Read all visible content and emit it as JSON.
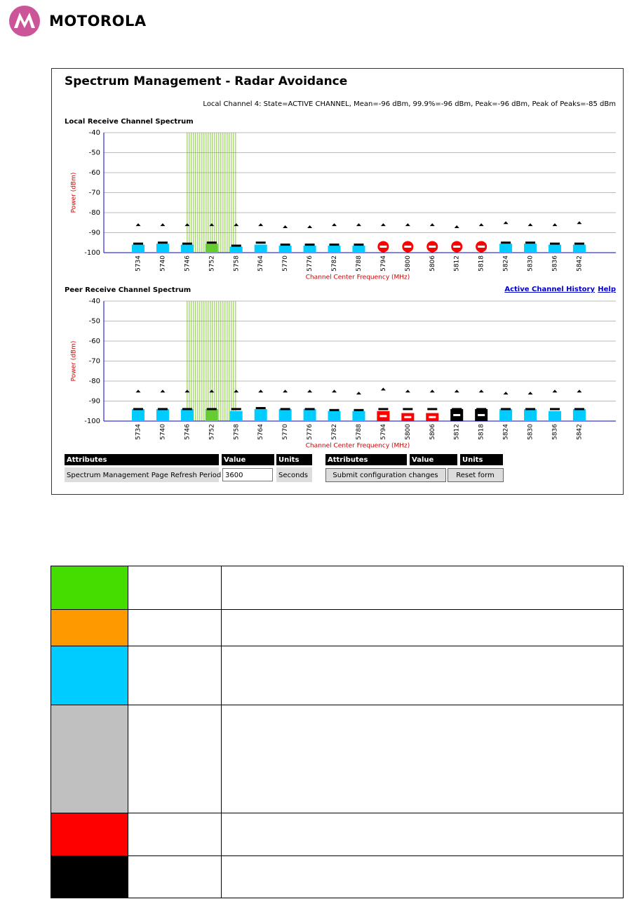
{
  "header": {
    "brand": "MOTOROLA"
  },
  "panel": {
    "title": "Spectrum Management - Radar Avoidance",
    "status": "Local Channel 4: State=ACTIVE CHANNEL, Mean=-96 dBm, 99.9%=-96 dBm, Peak=-96 dBm, Peak of Peaks=-85 dBm"
  },
  "links": [
    "Active Channel History",
    "Help"
  ],
  "chart_data": [
    {
      "type": "bar",
      "title": "Local Receive Channel Spectrum",
      "ylabel": "Power (dBm)",
      "xlabel": "Channel Center Frequency (MHz)",
      "categories": [
        5734,
        5740,
        5746,
        5752,
        5758,
        5764,
        5770,
        5776,
        5782,
        5788,
        5794,
        5800,
        5806,
        5812,
        5818,
        5824,
        5830,
        5836,
        5842
      ],
      "ylim": [
        -100,
        -40
      ],
      "yticks": [
        -40,
        -50,
        -60,
        -70,
        -80,
        -90,
        -100
      ],
      "grid": true,
      "radar_marker": "circle",
      "bar_values": [
        -96,
        -95.5,
        -96,
        -95.5,
        -97,
        -96,
        -96.5,
        -96.5,
        -96.5,
        -96.5,
        -97,
        -97,
        -97,
        -97,
        -97,
        -95.5,
        -95.5,
        -96,
        -96
      ],
      "bar_colors": [
        "#00ccff",
        "#00ccff",
        "#00ccff",
        "#66cc33",
        "#00ccff",
        "#00ccff",
        "#00ccff",
        "#00ccff",
        "#00ccff",
        "#00ccff",
        "#ff0000",
        "#ff0000",
        "#ff0000",
        "#ff0000",
        "#ff0000",
        "#00ccff",
        "#00ccff",
        "#00ccff",
        "#00ccff"
      ],
      "line_values": [
        -95.5,
        -95,
        -95.5,
        -95,
        -96.5,
        -95,
        -96,
        -96,
        -96,
        -96,
        null,
        null,
        null,
        null,
        null,
        -95,
        -95,
        -95.5,
        -95.5
      ],
      "peak_values": [
        -86,
        -86,
        -86,
        -86,
        -86,
        -86,
        -87,
        -87,
        -86,
        -86,
        -86,
        -86,
        -86,
        -87,
        -86,
        -85,
        -86,
        -86,
        -85
      ],
      "highlight": [
        5746,
        5758
      ],
      "highlight_color": "#66bb00"
    },
    {
      "type": "bar",
      "title": "Peer Receive Channel Spectrum",
      "ylabel": "Power (dBm)",
      "xlabel": "Channel Center Frequency (MHz)",
      "categories": [
        5734,
        5740,
        5746,
        5752,
        5758,
        5764,
        5770,
        5776,
        5782,
        5788,
        5794,
        5800,
        5806,
        5812,
        5818,
        5824,
        5830,
        5836,
        5842
      ],
      "ylim": [
        -100,
        -40
      ],
      "yticks": [
        -40,
        -50,
        -60,
        -70,
        -80,
        -90,
        -100
      ],
      "grid": true,
      "radar_marker": "bar",
      "bar_values": [
        -94,
        -94,
        -94,
        -94,
        -95,
        -94,
        -94,
        -94,
        -95,
        -95,
        -95,
        -96,
        -96,
        -94,
        -94,
        -94,
        -94,
        -95,
        -94
      ],
      "bar_colors": [
        "#00ccff",
        "#00ccff",
        "#00ccff",
        "#66cc33",
        "#00ccff",
        "#00ccff",
        "#00ccff",
        "#00ccff",
        "#00ccff",
        "#00ccff",
        "#ff0000",
        "#ff0000",
        "#ff0000",
        "#000000",
        "#000000",
        "#00ccff",
        "#00ccff",
        "#00ccff",
        "#00ccff"
      ],
      "line_values": [
        -94,
        -94,
        -94,
        -94,
        -94,
        -93.5,
        -94,
        -94,
        -94.5,
        -94.5,
        -94,
        -94,
        -94,
        -94,
        -94,
        -94,
        -94,
        -94,
        -94
      ],
      "peak_values": [
        -85,
        -85,
        -85,
        -85,
        -85,
        -85,
        -85,
        -85,
        -85,
        -86,
        -84,
        -85,
        -85,
        -85,
        -85,
        -86,
        -86,
        -85,
        -85
      ],
      "highlight": [
        5746,
        5758
      ],
      "highlight_color": "#66bb00"
    }
  ],
  "form": {
    "headers": [
      "Attributes",
      "Value",
      "Units"
    ],
    "attribute": "Spectrum Management Page Refresh Period",
    "value": "3600",
    "units": "Seconds",
    "headers2": [
      "Attributes",
      "Value",
      "Units"
    ],
    "buttons": [
      "Submit configuration changes",
      "Reset form"
    ]
  },
  "legend_rows": [
    {
      "color": "#44dd00"
    },
    {
      "color": "#ff9900"
    },
    {
      "color": "#00ccff"
    },
    {
      "color": "#c0c0c0"
    },
    {
      "color": "#ff0000"
    },
    {
      "color": "#000000"
    }
  ]
}
